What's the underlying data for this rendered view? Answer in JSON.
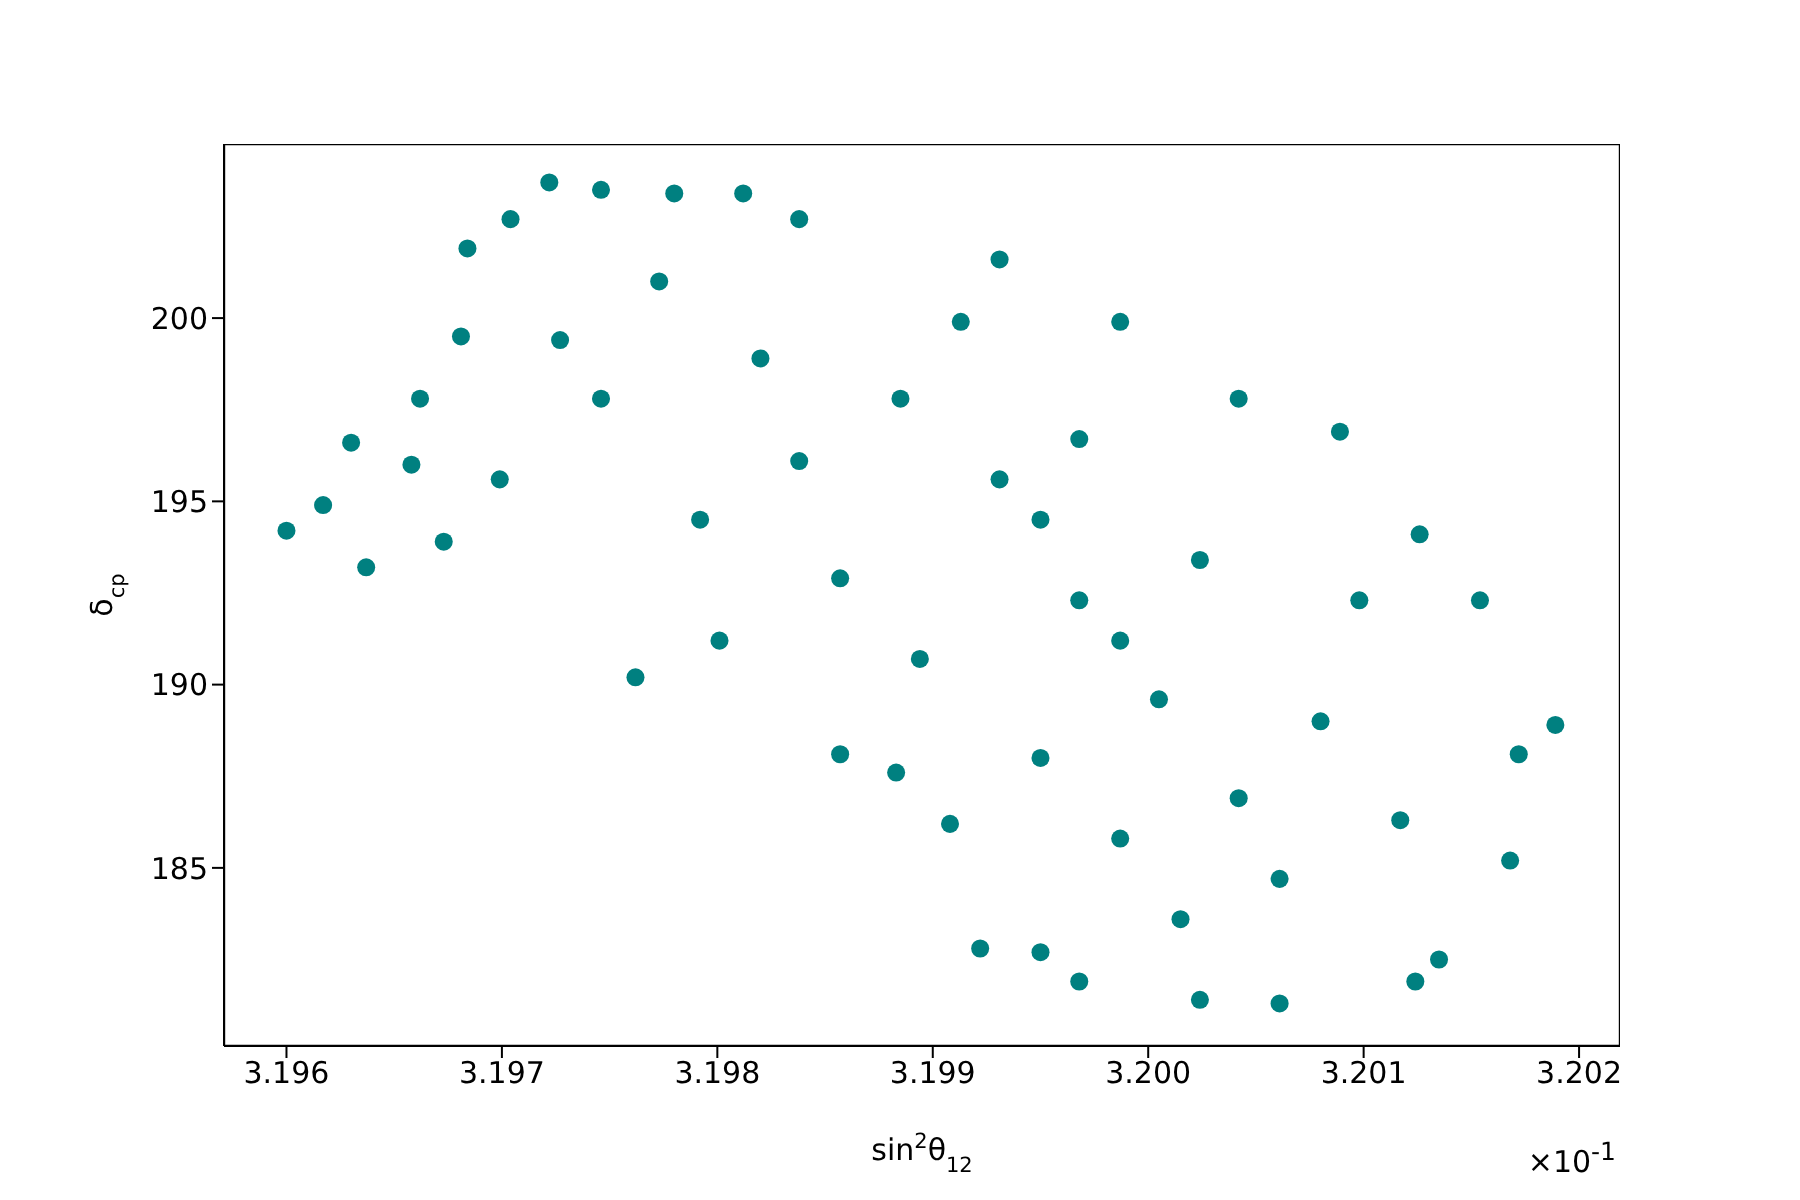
{
  "chart_data": {
    "type": "scatter",
    "xlabel": "sin$^{2}$θ$_{12}$",
    "ylabel": "δ$_{cp}$",
    "annotations": [
      "×10$^{-1}$"
    ],
    "xlim": [
      3.19571,
      3.20219
    ],
    "ylim": [
      180.14,
      204.75
    ],
    "xticks": [
      3.196,
      3.197,
      3.198,
      3.199,
      {
        "value": 3.2,
        "label": "3.200"
      },
      3.201,
      3.202
    ],
    "yticks": [
      185,
      190,
      195,
      200
    ],
    "grid": false,
    "legend": false,
    "marker": "circle",
    "series": [
      {
        "color": "#008080",
        "x": [
          3.196,
          3.19617,
          3.1963,
          3.19637,
          3.19658,
          3.19673,
          3.19681,
          3.19684,
          3.19704,
          3.19722,
          3.19746,
          3.19762,
          3.1978,
          3.19812,
          3.19838,
          3.19857,
          3.19883,
          3.19908,
          3.19922,
          3.19931,
          3.1995,
          3.19968,
          3.19987,
          3.20024,
          3.20061,
          3.20042,
          3.20089,
          3.20124,
          3.20126,
          3.20154,
          3.20172,
          3.20189,
          3.20168,
          3.20135,
          3.19968,
          3.19931,
          3.20005,
          3.19885,
          3.1982,
          3.20042,
          3.2008,
          3.19746,
          3.19699,
          3.19792,
          3.19857,
          3.19987,
          3.20098,
          3.20024,
          3.19894,
          3.1995,
          3.19838,
          3.19773,
          3.19913,
          3.19968,
          3.20061,
          3.20117,
          3.20015,
          3.1995,
          3.19987,
          3.19727,
          3.19662,
          3.19801
        ],
        "values": [
          194.2,
          194.9,
          196.6,
          193.2,
          196.0,
          193.9,
          199.5,
          201.9,
          202.7,
          203.7,
          203.5,
          190.2,
          203.4,
          203.4,
          202.7,
          188.1,
          187.6,
          186.2,
          182.8,
          201.6,
          182.7,
          181.9,
          199.9,
          181.4,
          181.3,
          197.8,
          196.9,
          181.9,
          194.1,
          192.3,
          188.1,
          188.9,
          185.2,
          182.5,
          192.3,
          195.6,
          189.6,
          197.8,
          198.9,
          186.9,
          189.0,
          197.8,
          195.6,
          194.5,
          192.9,
          185.8,
          192.3,
          193.4,
          190.7,
          188.0,
          196.1,
          201.0,
          199.9,
          196.7,
          184.7,
          186.3,
          183.6,
          194.5,
          191.2,
          199.4,
          197.8,
          191.2
        ]
      }
    ]
  }
}
